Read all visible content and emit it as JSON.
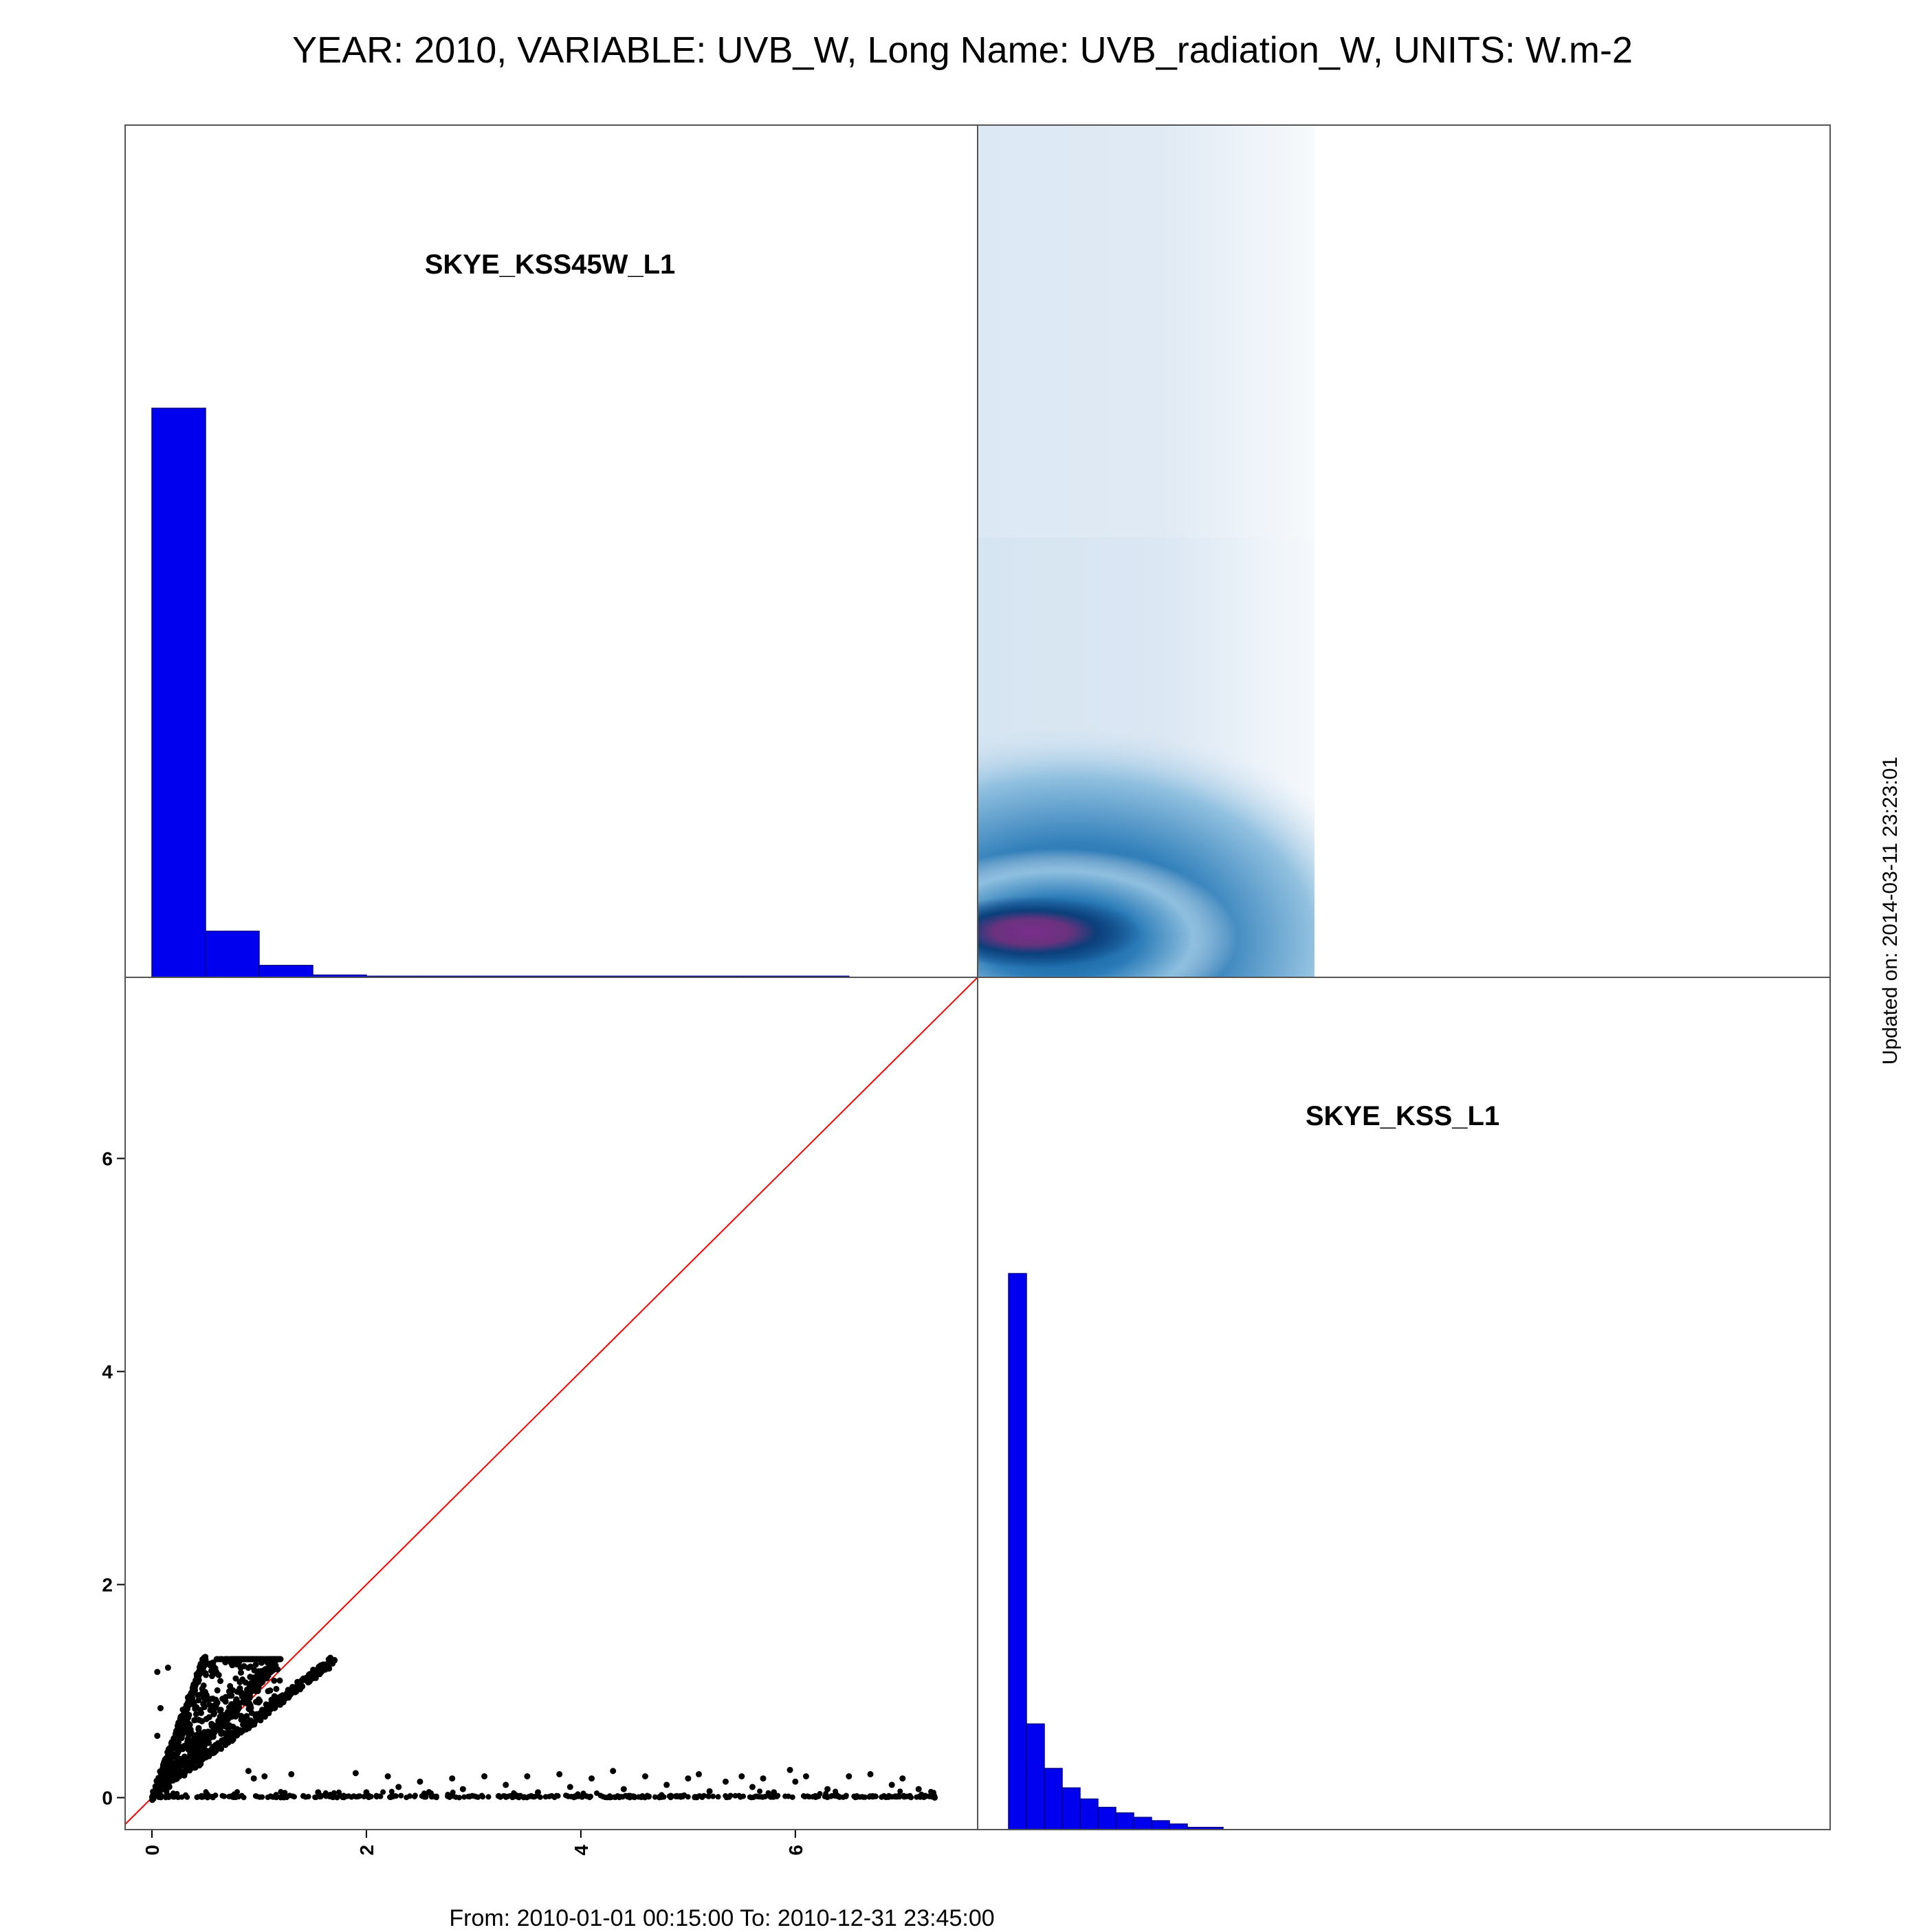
{
  "title": "YEAR: 2010, VARIABLE: UVB_W, Long Name: UVB_radiation_W, UNITS: W.m-2",
  "footer": "From: 2010-01-01 00:15:00 To: 2010-12-31 23:45:00",
  "updated": "Updated on: 2014-03-11 23:23:01",
  "chart_data": [
    {
      "type": "bar",
      "panel": "top-left",
      "label": "SKYE_KSS45W_L1",
      "bin_edges": [
        0,
        0.5,
        1.0,
        1.5,
        2.0,
        2.5,
        3.0,
        3.5,
        4.0,
        4.5,
        5.0,
        5.5,
        6.0,
        6.5
      ],
      "values": [
        1.0,
        0.081,
        0.021,
        0.004,
        0.002,
        0.002,
        0.002,
        0.002,
        0.002,
        0.002,
        0.002,
        0.002,
        0.002
      ],
      "value_scale": "relative frequency (axis not labeled)",
      "color": "#0000ee"
    },
    {
      "type": "heatmap",
      "panel": "top-right",
      "description_kind": "2D density",
      "x_range": [
        0,
        2.8
      ],
      "density_peak": [
        0.4,
        0.05
      ],
      "colors": [
        "#ffffff",
        "#dce8f4",
        "#4a9ccc",
        "#054a8c",
        "#7a2e8c"
      ]
    },
    {
      "type": "scatter",
      "panel": "bottom-left",
      "xlim": [
        -0.25,
        7.7
      ],
      "ylim": [
        -0.3,
        7.7
      ],
      "xticks": [
        "0",
        "2",
        "4",
        "6"
      ],
      "yticks": [
        "0",
        "2",
        "4",
        "6"
      ],
      "reference_line": "y = x",
      "reference_color": "#ff0000",
      "point_color": "#000000",
      "clusters": [
        {
          "from": [
            0.0,
            0.0
          ],
          "to": [
            0.5,
            1.32
          ],
          "spread": 0.03
        },
        {
          "from": [
            0.0,
            0.0
          ],
          "to": [
            1.15,
            1.27
          ],
          "spread": 0.05
        },
        {
          "from": [
            0.0,
            0.0
          ],
          "to": [
            1.7,
            1.3
          ],
          "spread": 0.04
        }
      ],
      "scattered_points": [
        [
          0.05,
          1.18
        ],
        [
          0.15,
          1.22
        ],
        [
          0.05,
          0.58
        ],
        [
          0.08,
          0.84
        ],
        [
          0.35,
          0.5
        ],
        [
          0.6,
          1.18
        ],
        [
          0.9,
          0.25
        ],
        [
          0.95,
          0.18
        ],
        [
          1.05,
          0.2
        ],
        [
          1.3,
          0.22
        ],
        [
          1.55,
          0.05
        ],
        [
          1.9,
          0.23
        ],
        [
          2.0,
          0.05
        ],
        [
          2.2,
          0.2
        ],
        [
          2.3,
          0.1
        ],
        [
          2.5,
          0.15
        ],
        [
          2.6,
          0.04
        ],
        [
          2.8,
          0.18
        ],
        [
          2.9,
          0.08
        ],
        [
          3.1,
          0.2
        ],
        [
          3.3,
          0.12
        ],
        [
          3.5,
          0.2
        ],
        [
          3.6,
          0.05
        ],
        [
          3.8,
          0.22
        ],
        [
          3.9,
          0.1
        ],
        [
          4.1,
          0.18
        ],
        [
          4.3,
          0.25
        ],
        [
          4.4,
          0.08
        ],
        [
          4.6,
          0.2
        ],
        [
          4.8,
          0.12
        ],
        [
          5.0,
          0.18
        ],
        [
          5.1,
          0.22
        ],
        [
          5.2,
          0.06
        ],
        [
          5.35,
          0.15
        ],
        [
          5.5,
          0.2
        ],
        [
          5.6,
          0.1
        ],
        [
          5.7,
          0.18
        ],
        [
          5.8,
          0.05
        ],
        [
          5.95,
          0.26
        ],
        [
          6.0,
          0.15
        ],
        [
          6.1,
          0.2
        ],
        [
          6.3,
          0.08
        ],
        [
          6.5,
          0.2
        ],
        [
          6.7,
          0.22
        ],
        [
          6.9,
          0.12
        ],
        [
          7.0,
          0.18
        ],
        [
          7.15,
          0.08
        ],
        [
          7.3,
          0.0
        ]
      ],
      "baseline_band": [
        0.0,
        7.3
      ]
    },
    {
      "type": "bar",
      "panel": "bottom-right",
      "label": "SKYE_KSS_L1",
      "bin_edges": [
        0,
        0.125,
        0.25,
        0.375,
        0.5,
        0.625,
        0.75,
        0.875,
        1.0,
        1.125,
        1.25,
        1.5
      ],
      "values": [
        1.0,
        0.19,
        0.11,
        0.075,
        0.055,
        0.04,
        0.03,
        0.022,
        0.016,
        0.01,
        0.004
      ],
      "value_scale": "relative frequency (axis not labeled)",
      "color": "#0000ee"
    }
  ]
}
